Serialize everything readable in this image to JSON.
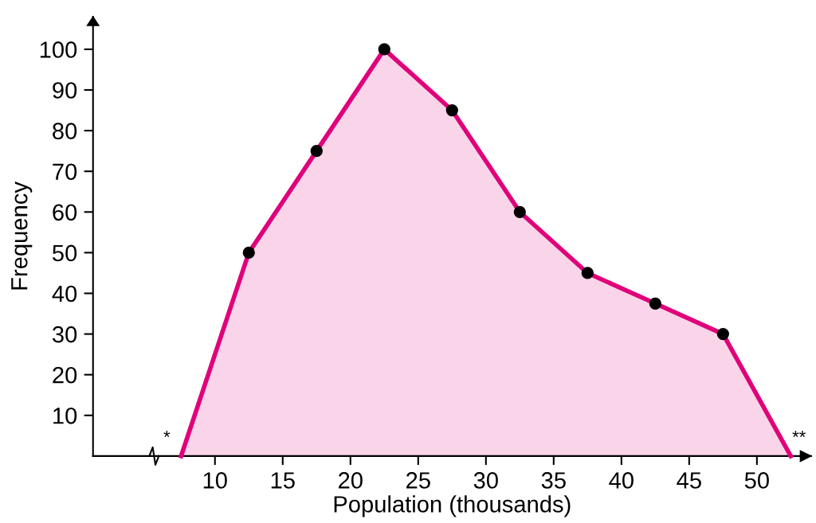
{
  "chart_data": {
    "type": "area",
    "xlabel": "Population (thousands)",
    "ylabel": "Frequency",
    "x": [
      7.5,
      12.5,
      17.5,
      22.5,
      27.5,
      32.5,
      37.5,
      42.5,
      47.5,
      52.5
    ],
    "series": [
      {
        "color": "#e0007a",
        "values": [
          0,
          50,
          75,
          100,
          85,
          60,
          45,
          37.5,
          30,
          0
        ]
      },
      {
        "type": "scatter",
        "color": "#000000",
        "x": [
          12.5,
          17.5,
          22.5,
          27.5,
          32.5,
          37.5,
          42.5,
          47.5
        ],
        "values": [
          50,
          75,
          100,
          85,
          60,
          45,
          37.5,
          30
        ],
        "marker": "circle"
      }
    ],
    "xlim": [
      1,
      54
    ],
    "xticks": [
      10,
      15,
      20,
      25,
      30,
      35,
      40,
      45,
      50
    ],
    "ylim": [
      0,
      108
    ],
    "yticks": [
      10,
      20,
      30,
      40,
      50,
      60,
      70,
      80,
      90,
      100
    ],
    "grid": false,
    "legend": false,
    "annotations": [
      "*",
      "**"
    ]
  }
}
